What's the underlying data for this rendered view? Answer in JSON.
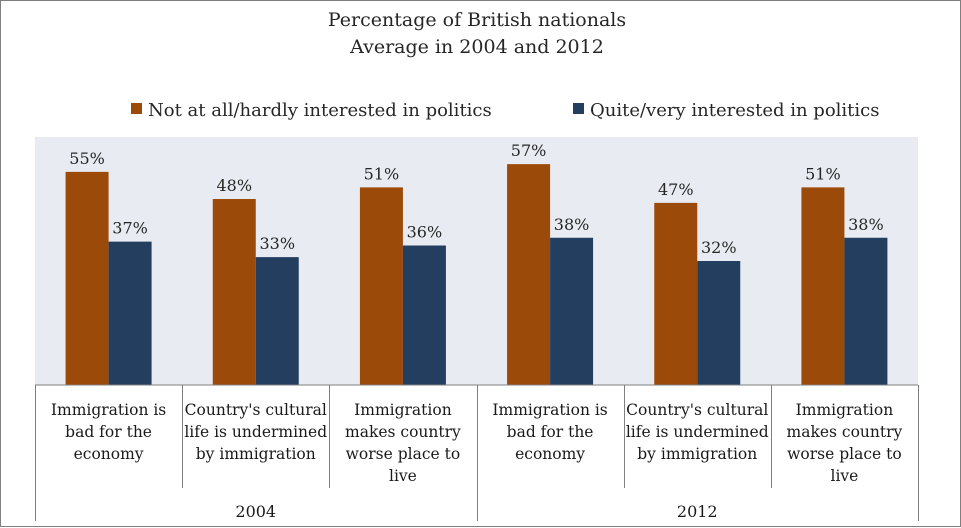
{
  "chart_data": {
    "type": "bar",
    "title": "Percentage of British nationals",
    "subtitle": "Average in 2004 and 2012",
    "xlabel": "",
    "ylabel": "",
    "ylim": [
      0,
      64
    ],
    "grid": false,
    "legend_position": "top",
    "plot_background": "#E8ECF2",
    "groups": [
      "2004",
      "2012"
    ],
    "categories": [
      "Immigration is bad for the economy",
      "Country's cultural life is undermined by immigration",
      "Immigration makes country worse place to live",
      "Immigration is bad for the economy",
      "Country's cultural life is undermined by immigration",
      "Immigration makes country worse place to live"
    ],
    "category_lines": [
      [
        "Immigration is",
        "bad for the",
        "economy"
      ],
      [
        "Country's cultural",
        "life is undermined",
        "by immigration"
      ],
      [
        "Immigration",
        "makes country",
        "worse place to",
        "live"
      ],
      [
        "Immigration is",
        "bad for the",
        "economy"
      ],
      [
        "Country's cultural",
        "life is undermined",
        "by immigration"
      ],
      [
        "Immigration",
        "makes country",
        "worse place to",
        "live"
      ]
    ],
    "series": [
      {
        "name": "Not at all/hardly interested in politics",
        "color": "#9C4A0A",
        "values": [
          55,
          48,
          51,
          57,
          47,
          51
        ],
        "labels": [
          "55%",
          "48%",
          "51%",
          "57%",
          "47%",
          "51%"
        ]
      },
      {
        "name": "Quite/very interested in politics",
        "color": "#243E60",
        "values": [
          37,
          33,
          36,
          38,
          32,
          38
        ],
        "labels": [
          "37%",
          "33%",
          "36%",
          "38%",
          "32%",
          "38%"
        ]
      }
    ]
  }
}
